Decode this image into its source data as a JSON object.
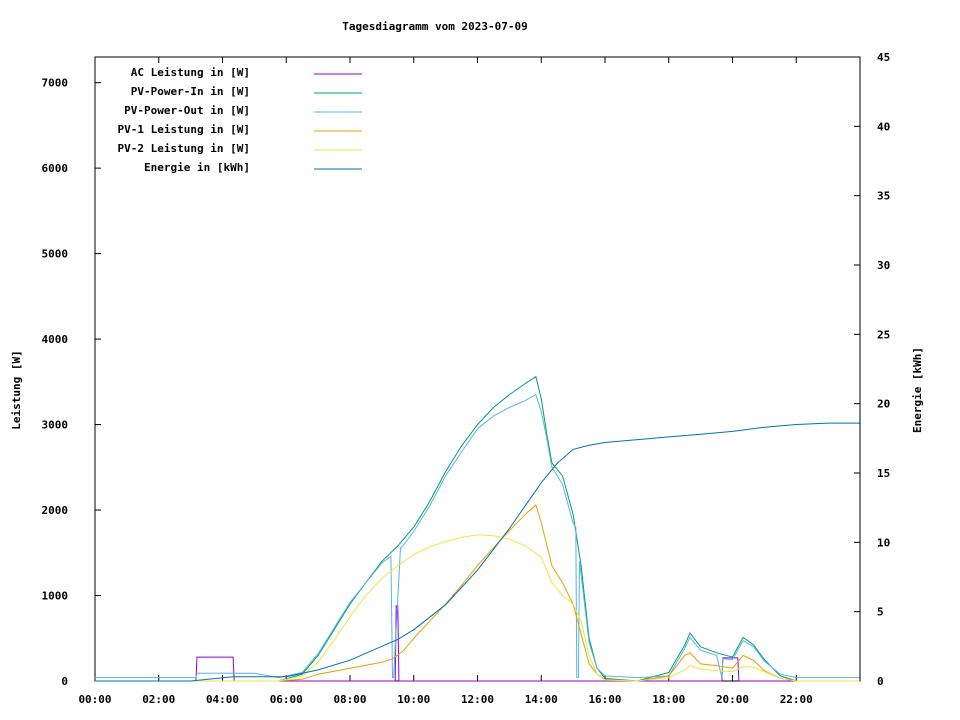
{
  "chart_data": {
    "type": "line",
    "title": "Tagesdiagramm vom 2023-07-09",
    "ylabel": "Leistung [W]",
    "y2label": "Energie [kWh]",
    "xlabel": "",
    "xlim_hours": [
      0,
      24
    ],
    "ylim": [
      0,
      7300
    ],
    "y2lim": [
      0,
      45
    ],
    "x_ticks": [
      "00:00",
      "02:00",
      "04:00",
      "06:00",
      "08:00",
      "10:00",
      "12:00",
      "14:00",
      "16:00",
      "18:00",
      "20:00",
      "22:00"
    ],
    "y_ticks": [
      "0",
      "1000",
      "2000",
      "3000",
      "4000",
      "5000",
      "6000",
      "7000"
    ],
    "y2_ticks": [
      "0",
      "5",
      "10",
      "15",
      "20",
      "25",
      "30",
      "35",
      "40",
      "45"
    ],
    "legend_position": "top-left",
    "grid": false,
    "series": [
      {
        "name": "AC Leistung in [W]",
        "axis": "left",
        "color": "#9400d3",
        "x": [
          "00:00",
          "03:10",
          "03:12",
          "04:20",
          "04:22",
          "06:00",
          "09:25",
          "09:27",
          "09:30",
          "09:32",
          "18:00",
          "19:40",
          "19:42",
          "20:10",
          "20:12",
          "23:59"
        ],
        "y": [
          0,
          0,
          280,
          280,
          0,
          0,
          0,
          880,
          880,
          0,
          0,
          0,
          270,
          270,
          0,
          0
        ]
      },
      {
        "name": "PV-Power-In in [W]",
        "axis": "left",
        "color": "#009e73",
        "x": [
          "00:00",
          "05:45",
          "06:30",
          "07:00",
          "07:30",
          "08:00",
          "08:30",
          "09:00",
          "09:30",
          "10:00",
          "10:30",
          "11:00",
          "11:30",
          "12:00",
          "12:30",
          "13:00",
          "13:30",
          "13:50",
          "14:00",
          "14:10",
          "14:20",
          "14:40",
          "15:00",
          "15:15",
          "15:30",
          "15:45",
          "16:00",
          "17:00",
          "18:00",
          "18:30",
          "18:40",
          "19:00",
          "19:30",
          "20:00",
          "20:20",
          "20:40",
          "21:00",
          "21:30",
          "22:00",
          "23:59"
        ],
        "y": [
          0,
          0,
          80,
          300,
          600,
          900,
          1150,
          1400,
          1580,
          1800,
          2100,
          2450,
          2750,
          3000,
          3200,
          3350,
          3480,
          3560,
          3300,
          2900,
          2550,
          2400,
          1950,
          1350,
          500,
          150,
          30,
          0,
          100,
          420,
          560,
          400,
          330,
          280,
          510,
          420,
          250,
          60,
          0,
          0
        ]
      },
      {
        "name": "PV-Power-Out in [W]",
        "axis": "left",
        "color": "#56b4e9",
        "x": [
          "00:00",
          "03:10",
          "03:12",
          "05:00",
          "05:45",
          "06:30",
          "07:00",
          "07:30",
          "08:00",
          "08:30",
          "09:00",
          "09:15",
          "09:17",
          "09:20",
          "09:22",
          "09:35",
          "09:37",
          "09:40",
          "09:42",
          "10:00",
          "10:30",
          "11:00",
          "11:30",
          "12:00",
          "12:30",
          "13:00",
          "13:30",
          "13:50",
          "14:00",
          "14:10",
          "14:20",
          "14:40",
          "15:00",
          "15:05",
          "15:07",
          "15:10",
          "15:12",
          "15:30",
          "15:45",
          "16:00",
          "17:00",
          "18:00",
          "18:30",
          "18:40",
          "19:00",
          "19:30",
          "19:40",
          "19:42",
          "20:00",
          "20:20",
          "20:40",
          "21:00",
          "21:30",
          "22:00",
          "22:30",
          "23:59"
        ],
        "y": [
          40,
          40,
          90,
          90,
          40,
          100,
          320,
          620,
          920,
          1150,
          1380,
          1450,
          1460,
          40,
          40,
          1560,
          1560,
          1590,
          1600,
          1750,
          2050,
          2400,
          2680,
          2950,
          3100,
          3200,
          3280,
          3350,
          3150,
          2850,
          2500,
          2300,
          1850,
          1800,
          40,
          40,
          1400,
          450,
          150,
          60,
          40,
          60,
          380,
          510,
          360,
          300,
          40,
          260,
          250,
          470,
          400,
          230,
          80,
          40,
          40,
          40
        ]
      },
      {
        "name": "PV-1 Leistung in [W]",
        "axis": "left",
        "color": "#e69f00",
        "x": [
          "00:00",
          "05:45",
          "06:30",
          "07:00",
          "08:00",
          "09:00",
          "09:20",
          "09:40",
          "10:00",
          "10:30",
          "11:00",
          "11:30",
          "12:00",
          "12:30",
          "13:00",
          "13:30",
          "13:50",
          "14:00",
          "14:10",
          "14:20",
          "14:40",
          "15:00",
          "15:15",
          "15:30",
          "15:45",
          "16:00",
          "17:00",
          "18:00",
          "18:30",
          "18:40",
          "19:00",
          "19:30",
          "20:00",
          "20:20",
          "20:40",
          "21:00",
          "21:30",
          "22:00",
          "23:59"
        ],
        "y": [
          0,
          0,
          20,
          80,
          150,
          220,
          260,
          350,
          500,
          700,
          900,
          1120,
          1350,
          1560,
          1760,
          1950,
          2060,
          1850,
          1600,
          1350,
          1150,
          900,
          550,
          200,
          80,
          20,
          0,
          60,
          300,
          330,
          200,
          180,
          150,
          300,
          240,
          120,
          30,
          0,
          0
        ]
      },
      {
        "name": "PV-2 Leistung in [W]",
        "axis": "left",
        "color": "#f0e442",
        "x": [
          "00:00",
          "05:45",
          "06:30",
          "07:00",
          "07:30",
          "08:00",
          "08:30",
          "09:00",
          "09:30",
          "10:00",
          "10:30",
          "11:00",
          "11:30",
          "12:00",
          "12:30",
          "13:00",
          "13:30",
          "14:00",
          "14:20",
          "14:40",
          "15:00",
          "15:15",
          "15:30",
          "15:45",
          "16:00",
          "17:00",
          "18:00",
          "18:30",
          "18:40",
          "19:00",
          "19:30",
          "20:00",
          "20:20",
          "20:40",
          "21:00",
          "21:30",
          "22:00",
          "23:59"
        ],
        "y": [
          0,
          0,
          60,
          220,
          480,
          750,
          1000,
          1200,
          1350,
          1480,
          1570,
          1630,
          1680,
          1710,
          1700,
          1660,
          1580,
          1450,
          1150,
          1000,
          900,
          700,
          300,
          80,
          10,
          0,
          40,
          130,
          180,
          140,
          120,
          110,
          170,
          160,
          110,
          30,
          0,
          0
        ]
      },
      {
        "name": "Energie in [kWh]",
        "axis": "right",
        "color": "#0072b2",
        "x": [
          "00:00",
          "03:00",
          "04:20",
          "06:00",
          "07:00",
          "08:00",
          "09:00",
          "09:30",
          "10:00",
          "11:00",
          "12:00",
          "13:00",
          "14:00",
          "14:30",
          "15:00",
          "15:30",
          "16:00",
          "17:00",
          "18:00",
          "19:00",
          "20:00",
          "21:00",
          "22:00",
          "23:00",
          "23:59"
        ],
        "y": [
          0,
          0,
          0.3,
          0.3,
          0.8,
          1.5,
          2.5,
          3.0,
          3.7,
          5.5,
          8.0,
          11.0,
          14.3,
          15.7,
          16.7,
          17.0,
          17.2,
          17.4,
          17.6,
          17.8,
          18.0,
          18.3,
          18.5,
          18.6,
          18.6
        ]
      }
    ]
  }
}
